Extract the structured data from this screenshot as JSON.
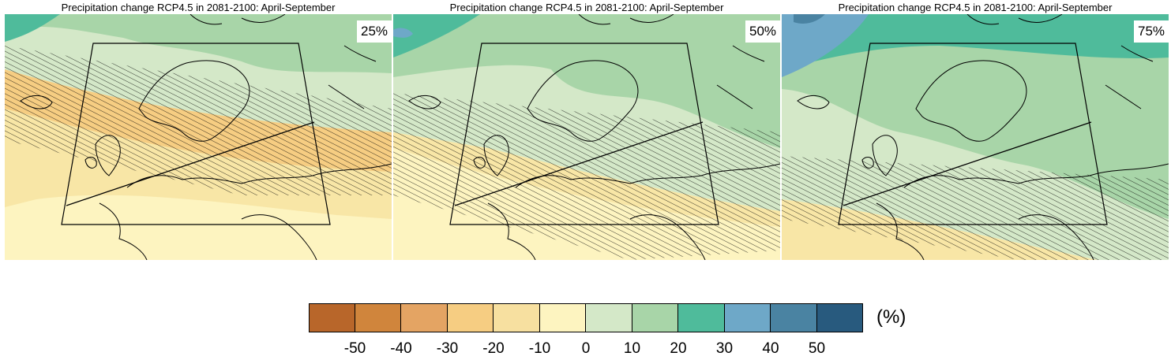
{
  "panels": [
    {
      "title": "Precipitation change RCP4.5 in 2081-2100: April-September",
      "percentile": "25%"
    },
    {
      "title": "Precipitation change RCP4.5 in 2081-2100: April-September",
      "percentile": "50%"
    },
    {
      "title": "Precipitation change RCP4.5 in 2081-2100: April-September",
      "percentile": "75%"
    }
  ],
  "colorbar": {
    "unit": "(%)",
    "colors": [
      "#b8662a",
      "#d0853c",
      "#e4a463",
      "#f6cd82",
      "#f7e0a0",
      "#fdf4c0",
      "#d4e8c8",
      "#a8d5a8",
      "#4fbb9b",
      "#6ea8c8",
      "#4a83a2",
      "#285a7e"
    ],
    "ticks": [
      "-50",
      "-40",
      "-30",
      "-20",
      "-10",
      "0",
      "10",
      "20",
      "30",
      "40",
      "50"
    ]
  }
}
